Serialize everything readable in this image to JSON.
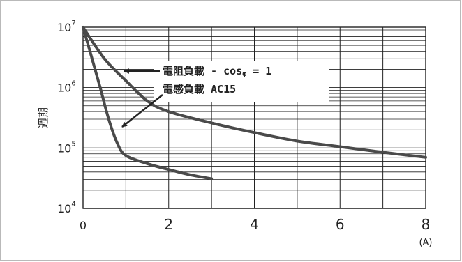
{
  "chart_data": {
    "type": "line",
    "title": "",
    "xlabel": "",
    "x_unit": "(A)",
    "ylabel": "週期",
    "xlim": [
      0,
      8
    ],
    "ylim": [
      10000,
      10000000
    ],
    "y_scale": "log",
    "grid": true,
    "x_ticks": [
      "0",
      "2",
      "4",
      "6",
      "8"
    ],
    "y_ticks": [
      {
        "base": "10",
        "exp": "4",
        "value": 10000
      },
      {
        "base": "10",
        "exp": "5",
        "value": 100000
      },
      {
        "base": "10",
        "exp": "6",
        "value": 1000000
      },
      {
        "base": "10",
        "exp": "7",
        "value": 10000000
      }
    ],
    "series": [
      {
        "name": "電阻負載 - cos φ = 1",
        "color": "#4a4a4a",
        "points": [
          [
            0,
            10000000
          ],
          [
            0.5,
            3000000
          ],
          [
            1,
            1300000
          ],
          [
            1.5,
            600000
          ],
          [
            2,
            400000
          ],
          [
            3,
            260000
          ],
          [
            4,
            180000
          ],
          [
            5,
            130000
          ],
          [
            6,
            105000
          ],
          [
            7,
            85000
          ],
          [
            8,
            70000
          ]
        ]
      },
      {
        "name": "電感負載 AC15",
        "color": "#4a4a4a",
        "points": [
          [
            0,
            10000000
          ],
          [
            0.2,
            3200000
          ],
          [
            0.4,
            1000000
          ],
          [
            0.6,
            300000
          ],
          [
            0.8,
            120000
          ],
          [
            1,
            75000
          ],
          [
            1.5,
            55000
          ],
          [
            2,
            44000
          ],
          [
            2.5,
            36000
          ],
          [
            3,
            31000
          ]
        ]
      }
    ]
  },
  "annotations": [
    {
      "name": "resistive-load-label",
      "parts": [
        "電阻負載 - cos",
        "φ",
        " = 1"
      ]
    },
    {
      "name": "inductive-load-label",
      "text": "電感負載 AC15"
    }
  ]
}
